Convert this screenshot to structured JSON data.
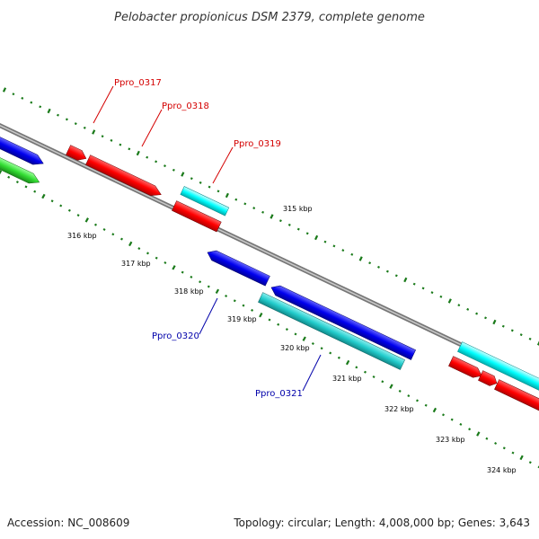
{
  "title": "Pelobacter propionicus DSM 2379, complete genome",
  "footer": {
    "accession": "Accession: NC_008609",
    "summary": "Topology: circular; Length: 4,008,000 bp; Genes: 3,643"
  },
  "colors": {
    "backbone": "#8a8a8a",
    "tick": "#1a7a1a",
    "red": "#ff0000",
    "blue": "#0000ee",
    "cyan": "#00ffff",
    "teal": "#22cccc",
    "green": "#33dd33",
    "label_red": "#d40000",
    "label_blue": "#0000aa"
  },
  "scale_labels": [
    "315 kbp",
    "316 kbp",
    "317 kbp",
    "318 kbp",
    "319 kbp",
    "320 kbp",
    "321 kbp",
    "322 kbp",
    "323 kbp",
    "324 kbp"
  ],
  "gene_labels": [
    {
      "text": "Ppro_0317",
      "color": "label_red"
    },
    {
      "text": "Ppro_0318",
      "color": "label_red"
    },
    {
      "text": "Ppro_0319",
      "color": "label_red"
    },
    {
      "text": "Ppro_0320",
      "color": "label_blue"
    },
    {
      "text": "Ppro_0321",
      "color": "label_blue"
    }
  ]
}
